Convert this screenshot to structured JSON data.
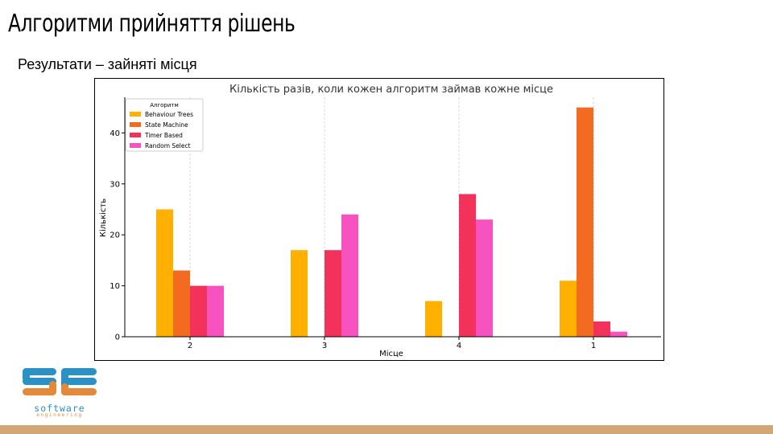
{
  "slide": {
    "title": "Алгоритми прийняття рішень",
    "subtitle": "Результати – зайняті місця"
  },
  "logo": {
    "mark": "SE",
    "line1": "software",
    "line2": "engineering",
    "colors": {
      "blue": "#2a91c4",
      "orange": "#e4893a"
    }
  },
  "chart_data": {
    "type": "bar",
    "title": "Кількість разів, коли кожен алгоритм займав кожне місце",
    "xlabel": "Місце",
    "ylabel": "Кількість",
    "categories": [
      "2",
      "3",
      "4",
      "1"
    ],
    "ylim": [
      0,
      47
    ],
    "yticks": [
      0,
      10,
      20,
      30,
      40
    ],
    "grid": "vertical",
    "legend": {
      "title": "Алгоритм",
      "placement": "top-left"
    },
    "series": [
      {
        "name": "Behaviour Trees",
        "color": "#ffb000",
        "values": [
          25,
          17,
          7,
          11
        ]
      },
      {
        "name": "State Machine",
        "color": "#f26b21",
        "values": [
          13,
          0,
          0,
          45
        ]
      },
      {
        "name": "Timer Based",
        "color": "#f2325a",
        "values": [
          10,
          17,
          28,
          3
        ]
      },
      {
        "name": "Random Select",
        "color": "#f753c0",
        "values": [
          10,
          24,
          23,
          1
        ]
      }
    ]
  }
}
